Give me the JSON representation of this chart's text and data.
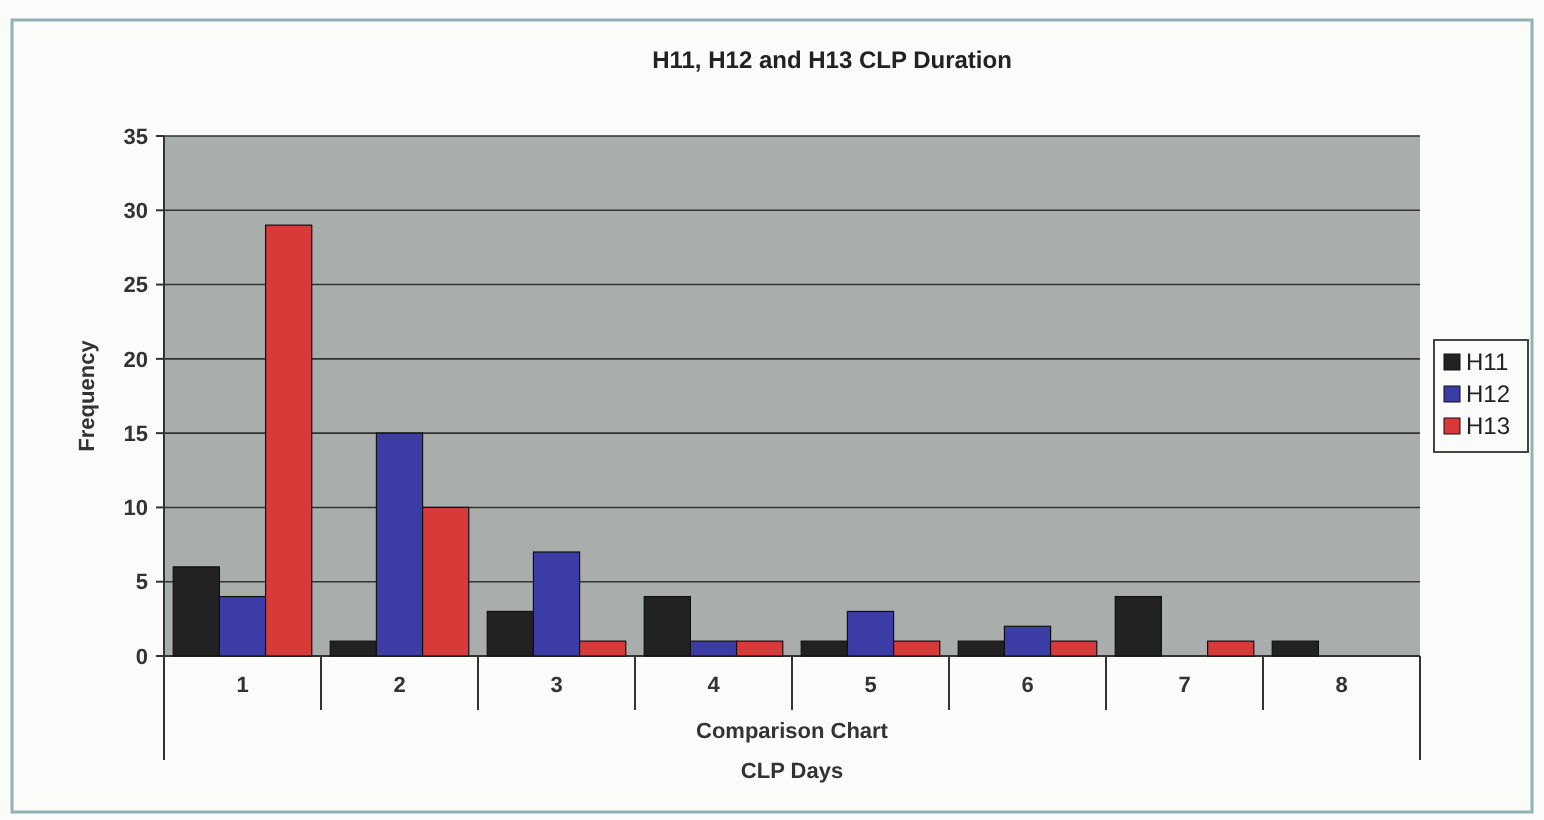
{
  "chart_data": {
    "type": "bar",
    "title": "H11, H12 and H13 CLP Duration",
    "xlabel": "CLP Days",
    "ylabel": "Frequency",
    "annotations": [
      "Comparison Chart"
    ],
    "categories": [
      "1",
      "2",
      "3",
      "4",
      "5",
      "6",
      "7",
      "8"
    ],
    "series": [
      {
        "name": "H11",
        "color": "#222222",
        "values": [
          6,
          1,
          3,
          4,
          1,
          1,
          4,
          1
        ]
      },
      {
        "name": "H12",
        "color": "#3b3ca6",
        "values": [
          4,
          15,
          7,
          1,
          3,
          2,
          0,
          0
        ]
      },
      {
        "name": "H13",
        "color": "#d83a3a",
        "values": [
          29,
          10,
          1,
          1,
          1,
          1,
          1,
          0
        ]
      }
    ],
    "ylim": [
      0,
      35
    ],
    "yticks": [
      0,
      5,
      10,
      15,
      20,
      25,
      30,
      35
    ],
    "grid": "y",
    "legend": "right"
  }
}
